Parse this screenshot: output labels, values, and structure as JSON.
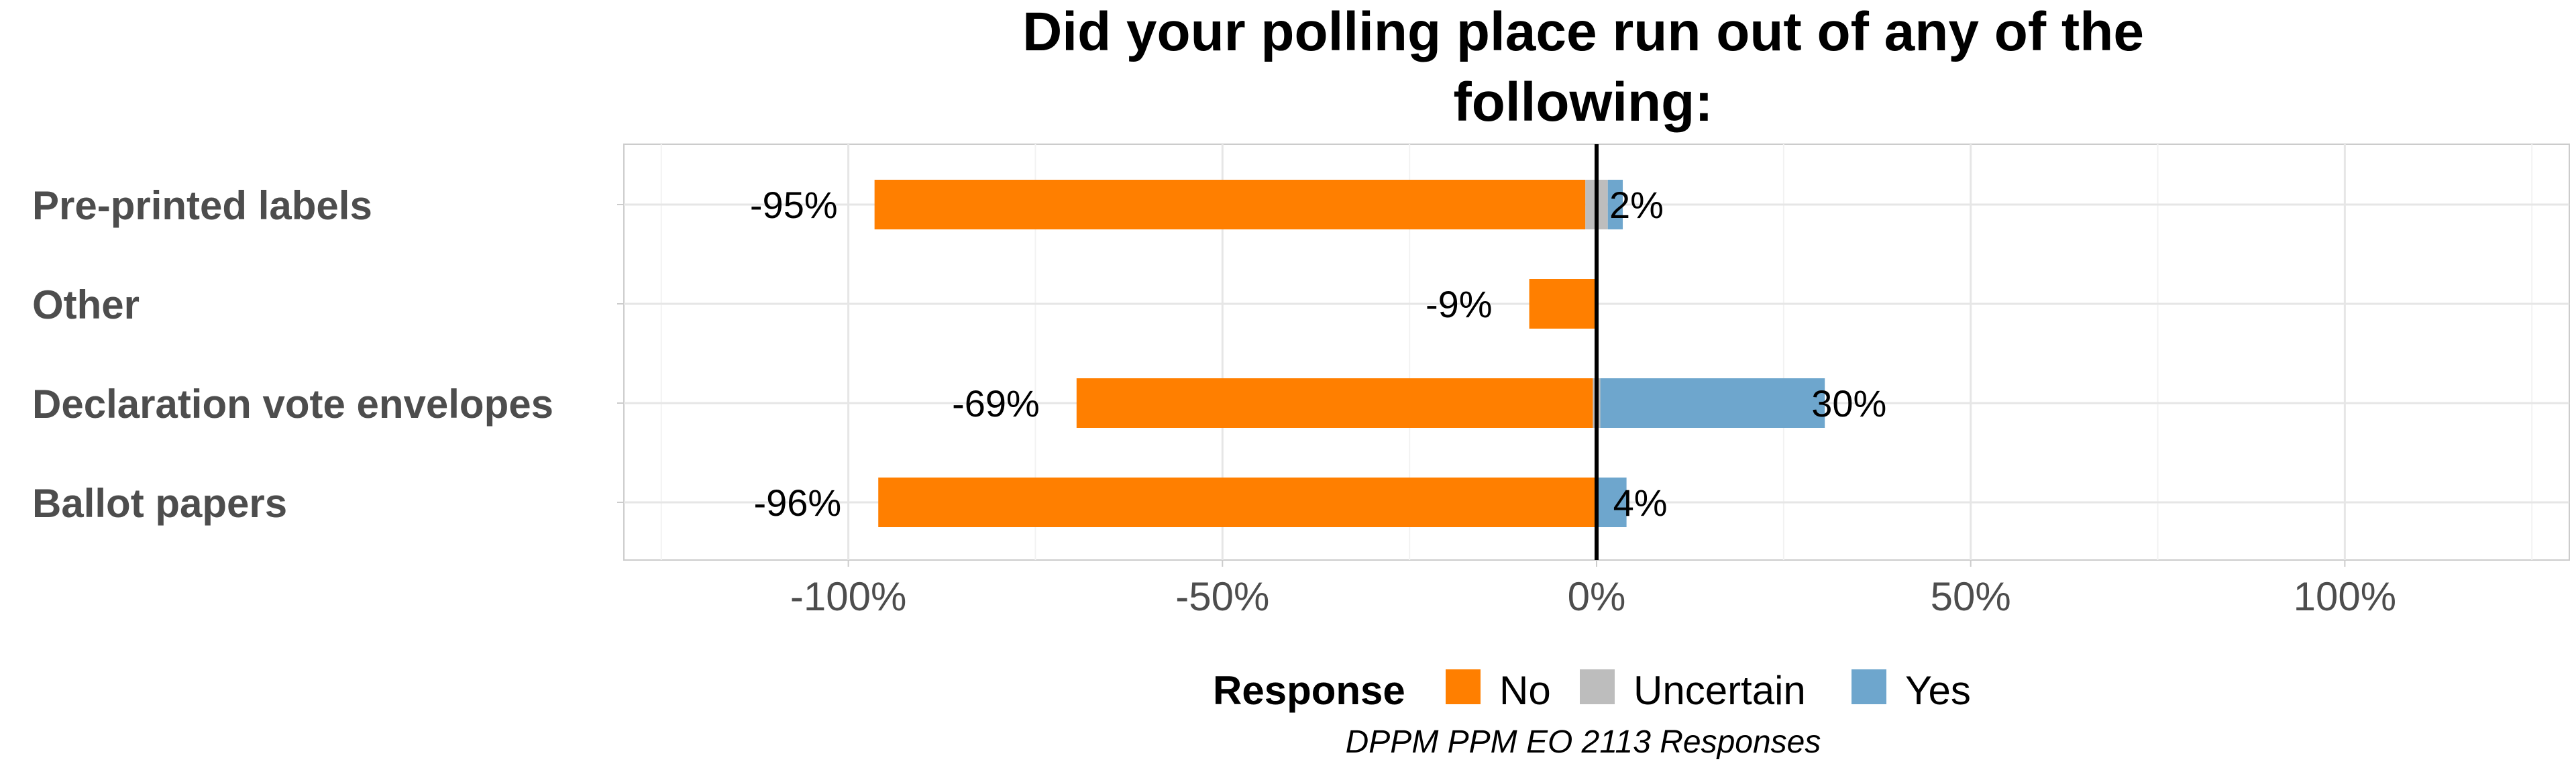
{
  "chart_data": {
    "type": "bar",
    "orientation": "horizontal",
    "stacked": true,
    "title": "Did your polling place run out of any of the following:",
    "title_lines": [
      "Did your polling place run out of any of the",
      "following:"
    ],
    "categories": [
      "Pre-printed labels",
      "Other",
      "Declaration vote envelopes",
      "Ballot papers"
    ],
    "series": [
      {
        "name": "No",
        "color": "#ff7f00",
        "values": [
          -95,
          -9,
          -69,
          -96
        ]
      },
      {
        "name": "Uncertain",
        "color": "#bdbdbd",
        "values": [
          3,
          0,
          1,
          0
        ]
      },
      {
        "name": "Yes",
        "color": "#6ea6cd",
        "values": [
          2,
          0,
          30,
          4
        ]
      }
    ],
    "uncertain_split": "centered",
    "negative_labels": [
      "-95%",
      "-9%",
      "-69%",
      "-96%"
    ],
    "positive_labels": [
      "2%",
      "",
      "30%",
      "4%"
    ],
    "xlim": [
      -130,
      130
    ],
    "xticks": [
      -100,
      -50,
      0,
      50,
      100
    ],
    "xtick_labels": [
      "-100%",
      "-50%",
      "0%",
      "50%",
      "100%"
    ],
    "grid": true,
    "legend": {
      "title": "Response",
      "entries": [
        "No",
        "Uncertain",
        "Yes"
      ],
      "placement": "bottom"
    },
    "caption": "DPPM PPM EO 2113 Responses"
  }
}
